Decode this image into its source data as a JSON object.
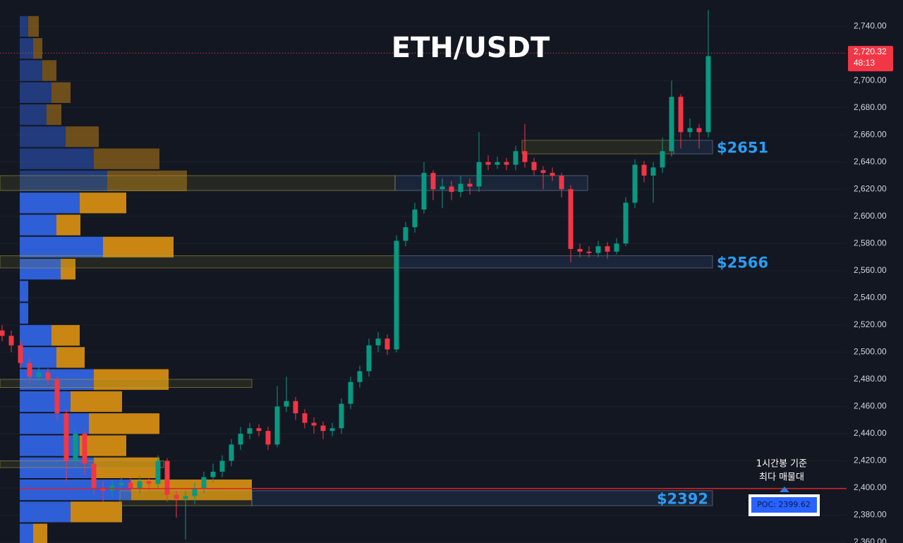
{
  "chart_data": {
    "type": "candlestick",
    "title": "ETH/USDT",
    "ylim": [
      2359.5,
      2759.3
    ],
    "yticks": [
      {
        "value": 2360,
        "label": "2,360.00"
      },
      {
        "value": 2380,
        "label": "2,380.00"
      },
      {
        "value": 2400,
        "label": "2,400.00"
      },
      {
        "value": 2420,
        "label": "2,420.00"
      },
      {
        "value": 2440,
        "label": "2,440.00"
      },
      {
        "value": 2460,
        "label": "2,460.00"
      },
      {
        "value": 2480,
        "label": "2,480.00"
      },
      {
        "value": 2500,
        "label": "2,500.00"
      },
      {
        "value": 2520,
        "label": "2,520.00"
      },
      {
        "value": 2540,
        "label": "2,540.00"
      },
      {
        "value": 2560,
        "label": "2,560.00"
      },
      {
        "value": 2580,
        "label": "2,580.00"
      },
      {
        "value": 2600,
        "label": "2,600.00"
      },
      {
        "value": 2620,
        "label": "2,620.00"
      },
      {
        "value": 2640,
        "label": "2,640.00"
      },
      {
        "value": 2660,
        "label": "2,660.00"
      },
      {
        "value": 2680,
        "label": "2,680.00"
      },
      {
        "value": 2700,
        "label": "2,700.00"
      },
      {
        "value": 2720,
        "label": "2,720.00"
      },
      {
        "value": 2740,
        "label": "2,740.00"
      }
    ],
    "grid": true,
    "up_color": "#089981",
    "down_color": "#f23645",
    "open": [
      2516,
      2512,
      2505,
      2492,
      2482,
      2485,
      2480,
      2455,
      2420,
      2440,
      2418,
      2400,
      2398,
      2402,
      2404,
      2400,
      2405,
      2403,
      2420,
      2395,
      2392,
      2394,
      2400,
      2408,
      2412,
      2420,
      2432,
      2440,
      2444,
      2442,
      2432,
      2460,
      2464,
      2455,
      2448,
      2446,
      2442,
      2444,
      2462,
      2478,
      2486,
      2505,
      2510,
      2502,
      2582,
      2592,
      2605,
      2632,
      2620,
      2622,
      2618,
      2624,
      2622,
      2640,
      2638,
      2640,
      2638,
      2648,
      2640,
      2634,
      2632,
      2630,
      2620,
      2576,
      2574,
      2573,
      2578,
      2574,
      2580,
      2610,
      2638,
      2630,
      2636,
      2648,
      2688,
      2662,
      2665,
      2662
    ],
    "high": [
      2520,
      2516,
      2508,
      2496,
      2490,
      2488,
      2482,
      2458,
      2445,
      2442,
      2420,
      2405,
      2406,
      2408,
      2407,
      2409,
      2408,
      2424,
      2422,
      2398,
      2398,
      2404,
      2412,
      2418,
      2424,
      2436,
      2445,
      2448,
      2447,
      2445,
      2475,
      2482,
      2467,
      2458,
      2452,
      2449,
      2448,
      2466,
      2482,
      2490,
      2510,
      2515,
      2513,
      2586,
      2596,
      2610,
      2640,
      2634,
      2628,
      2626,
      2630,
      2628,
      2662,
      2645,
      2644,
      2643,
      2652,
      2668,
      2643,
      2637,
      2636,
      2632,
      2623,
      2580,
      2578,
      2582,
      2581,
      2584,
      2614,
      2642,
      2641,
      2640,
      2658,
      2700,
      2690,
      2672,
      2668,
      2752
    ],
    "low": [
      2508,
      2500,
      2488,
      2476,
      2478,
      2476,
      2450,
      2405,
      2415,
      2410,
      2395,
      2390,
      2394,
      2398,
      2396,
      2396,
      2398,
      2400,
      2390,
      2378,
      2362,
      2388,
      2396,
      2404,
      2408,
      2416,
      2428,
      2436,
      2438,
      2428,
      2430,
      2456,
      2450,
      2444,
      2440,
      2436,
      2438,
      2440,
      2458,
      2474,
      2482,
      2500,
      2498,
      2500,
      2578,
      2588,
      2602,
      2612,
      2606,
      2612,
      2614,
      2616,
      2618,
      2634,
      2635,
      2634,
      2634,
      2636,
      2630,
      2620,
      2626,
      2614,
      2566,
      2570,
      2570,
      2570,
      2569,
      2572,
      2578,
      2606,
      2625,
      2610,
      2632,
      2644,
      2650,
      2658,
      2650,
      2658
    ],
    "close": [
      2512,
      2505,
      2492,
      2482,
      2485,
      2480,
      2455,
      2420,
      2440,
      2418,
      2400,
      2398,
      2402,
      2404,
      2400,
      2405,
      2403,
      2420,
      2395,
      2392,
      2394,
      2400,
      2408,
      2412,
      2420,
      2432,
      2440,
      2444,
      2442,
      2432,
      2460,
      2464,
      2455,
      2448,
      2446,
      2442,
      2444,
      2462,
      2478,
      2486,
      2505,
      2510,
      2502,
      2582,
      2592,
      2605,
      2632,
      2620,
      2622,
      2618,
      2624,
      2622,
      2640,
      2638,
      2640,
      2638,
      2648,
      2640,
      2634,
      2632,
      2630,
      2620,
      2576,
      2574,
      2573,
      2578,
      2574,
      2580,
      2610,
      2638,
      2630,
      2636,
      2648,
      2688,
      2662,
      2665,
      2662,
      2718
    ],
    "last_price": {
      "value": 2720.32,
      "label": "2,720.32"
    },
    "countdown": "48:13",
    "volume_profile": {
      "bins": [
        2358,
        2374.25,
        2390.5,
        2406.75,
        2423,
        2439.25,
        2455.5,
        2471.75,
        2488,
        2504.25,
        2520.5,
        2536.75,
        2553,
        2569.25,
        2585.5,
        2601.75,
        2618,
        2634.25,
        2650.5,
        2666.75,
        2683,
        2699.25,
        2715.5,
        2731.75,
        2748
      ],
      "buy": [
        19,
        72,
        158,
        105,
        85,
        98,
        72,
        105,
        52,
        45,
        12,
        12,
        58,
        118,
        52,
        85,
        124,
        105,
        65,
        38,
        45,
        32,
        19,
        12
      ],
      "sell": [
        20,
        73,
        171,
        93,
        66,
        100,
        73,
        106,
        40,
        40,
        0,
        0,
        21,
        100,
        34,
        66,
        113,
        93,
        47,
        21,
        27,
        20,
        13,
        15
      ],
      "xlim": [
        0,
        330
      ],
      "value_area_high": 2618,
      "buy_color": "#2f5fd6",
      "sell_color": "#c98613",
      "poc": {
        "value": 2399.62,
        "label": "POC: 2399.62"
      }
    },
    "zones": [
      {
        "low": 2646,
        "high": 2656,
        "label": "$2651"
      },
      {
        "low": 2619,
        "high": 2630
      },
      {
        "low": 2562,
        "high": 2571,
        "label": "$2566"
      },
      {
        "low": 2474,
        "high": 2480
      },
      {
        "low": 2415,
        "high": 2420
      },
      {
        "low": 2387,
        "high": 2398,
        "label": "$2392"
      }
    ],
    "annotation": [
      "1시간봉 기준",
      "최다 매물대"
    ]
  }
}
